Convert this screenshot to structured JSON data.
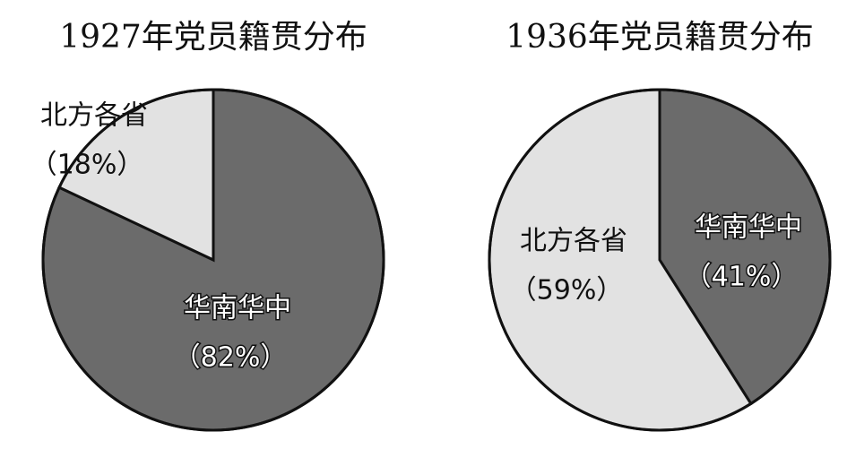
{
  "chart_data": [
    {
      "type": "pie",
      "title": "1927年党员籍贯分布",
      "categories": [
        "华南华中",
        "北方各省"
      ],
      "values": [
        82,
        18
      ],
      "value_labels": [
        "（82%）",
        "（18%）"
      ],
      "colors": [
        "#6b6b6b",
        "#e2e2e2"
      ]
    },
    {
      "type": "pie",
      "title": "1936年党员籍贯分布",
      "categories": [
        "华南华中",
        "北方各省"
      ],
      "values": [
        41,
        59
      ],
      "value_labels": [
        "（41%）",
        "（59%）"
      ],
      "colors": [
        "#6b6b6b",
        "#e2e2e2"
      ]
    }
  ]
}
